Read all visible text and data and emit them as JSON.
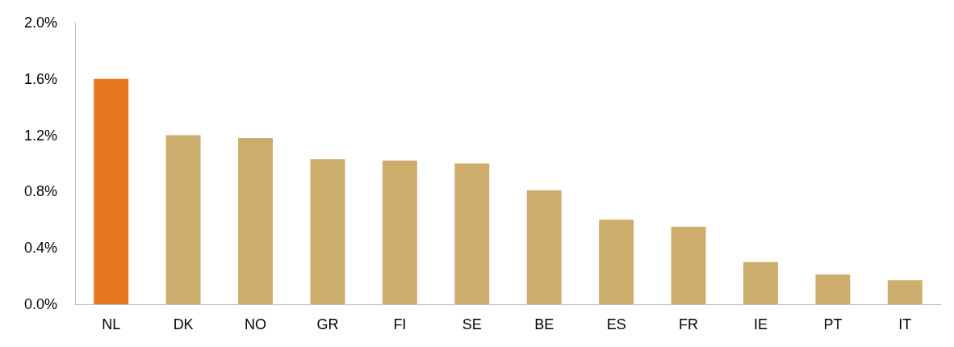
{
  "chart_data": {
    "type": "bar",
    "categories": [
      "NL",
      "DK",
      "NO",
      "GR",
      "FI",
      "SE",
      "BE",
      "ES",
      "FR",
      "IE",
      "PT",
      "IT"
    ],
    "values": [
      1.6,
      1.2,
      1.18,
      1.03,
      1.02,
      1.0,
      0.81,
      0.6,
      0.55,
      0.3,
      0.21,
      0.17
    ],
    "colors": [
      "#e87722",
      "#ccad6d",
      "#ccad6d",
      "#ccad6d",
      "#ccad6d",
      "#ccad6d",
      "#ccad6d",
      "#ccad6d",
      "#ccad6d",
      "#ccad6d",
      "#ccad6d",
      "#ccad6d"
    ],
    "ylim": [
      0,
      2.0
    ],
    "yticks": [
      {
        "value": 0,
        "label": "0.0%"
      },
      {
        "value": 0.4,
        "label": "0.4%"
      },
      {
        "value": 0.8,
        "label": "0.8%"
      },
      {
        "value": 1.2,
        "label": "1.2%"
      },
      {
        "value": 1.6,
        "label": "1.6%"
      },
      {
        "value": 2.0,
        "label": "2.0%"
      }
    ],
    "grid": false
  }
}
